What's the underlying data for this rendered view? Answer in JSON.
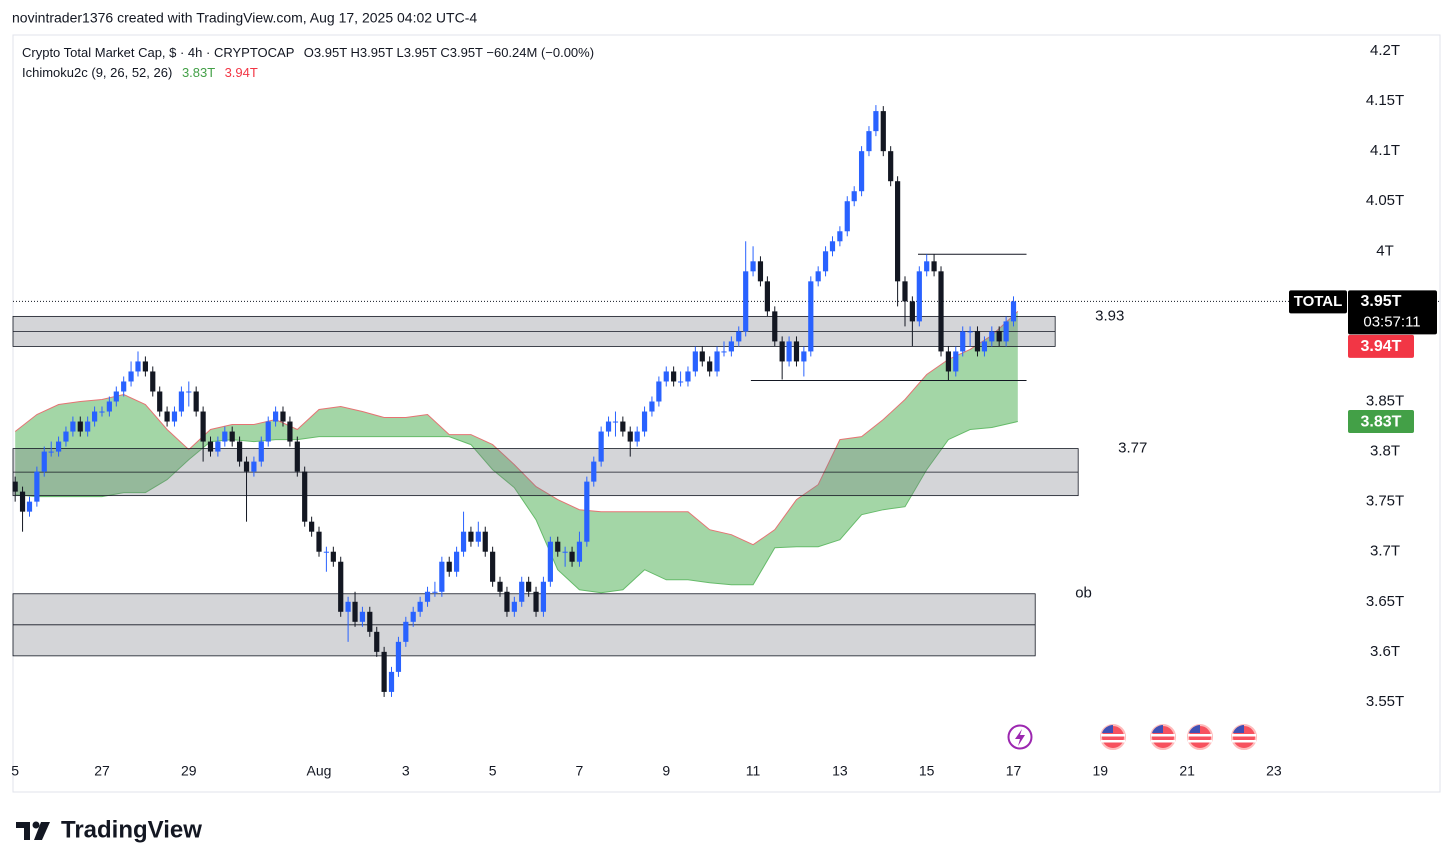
{
  "header": {
    "credit": "novintrader1376 created with TradingView.com, Aug 17, 2025 04:02 UTC-4"
  },
  "footer": {
    "brand": "TradingView"
  },
  "chart_data": {
    "type": "candlestick",
    "title": "Crypto Total Market Cap, $ · 4h · CRYPTOCAP",
    "ohlc_legend": "O3.95T H3.95T L3.95T C3.95T −60.24M (−0.00%)",
    "indicator": {
      "name": "Ichimoku2c (9, 26, 52, 26)",
      "values": [
        {
          "value": 3.83,
          "label": "3.83T",
          "color": "#43a047"
        },
        {
          "value": 3.94,
          "label": "3.94T",
          "color": "#f23645"
        }
      ]
    },
    "symbol_label": "TOTAL",
    "last_price": {
      "value": 3.95,
      "label": "3.95T"
    },
    "countdown": "03:57:11",
    "up_color": "#2962ff",
    "down_color": "#131722",
    "x": [
      0,
      0.17,
      0.33,
      0.5,
      0.67,
      0.83,
      1,
      1.17,
      1.33,
      1.5,
      1.67,
      1.83,
      2,
      2.17,
      2.33,
      2.5,
      2.67,
      2.83,
      3,
      3.17,
      3.33,
      3.5,
      3.67,
      3.83,
      4,
      4.17,
      4.33,
      4.5,
      4.67,
      4.83,
      5,
      5.17,
      5.33,
      5.5,
      5.67,
      5.83,
      6,
      6.17,
      6.33,
      6.5,
      6.67,
      6.83,
      7,
      7.17,
      7.33,
      7.5,
      7.67,
      7.83,
      8,
      8.17,
      8.33,
      8.5,
      8.67,
      8.83,
      9,
      9.17,
      9.33,
      9.5,
      9.67,
      9.83,
      10,
      10.17,
      10.33,
      10.5,
      10.67,
      10.83,
      11,
      11.17,
      11.33,
      11.5,
      11.67,
      11.83,
      12,
      12.17,
      12.33,
      12.5,
      12.67,
      12.83,
      13,
      13.17,
      13.33,
      13.5,
      13.67,
      13.83,
      14,
      14.17,
      14.33,
      14.5,
      14.67,
      14.83,
      15,
      15.17,
      15.33,
      15.5,
      15.67,
      15.83,
      16,
      16.17,
      16.33,
      16.5,
      16.67,
      16.83,
      17,
      17.17,
      17.33,
      17.5,
      17.67,
      17.83,
      18,
      18.17,
      18.33,
      18.5,
      18.67,
      18.83,
      19,
      19.17,
      19.33,
      19.5,
      19.67,
      19.83,
      20,
      20.17,
      20.33,
      20.5,
      20.67,
      20.83,
      21,
      21.17,
      21.33,
      21.5,
      21.67,
      21.83,
      22,
      22.17,
      22.33,
      22.5,
      22.67,
      22.83,
      23
    ],
    "candles": [
      [
        3.77,
        3.775,
        3.75,
        3.76
      ],
      [
        3.76,
        3.765,
        3.72,
        3.74
      ],
      [
        3.74,
        3.755,
        3.735,
        3.75
      ],
      [
        3.75,
        3.785,
        3.745,
        3.78
      ],
      [
        3.78,
        3.805,
        3.775,
        3.8
      ],
      [
        3.8,
        3.81,
        3.795,
        3.8
      ],
      [
        3.8,
        3.815,
        3.795,
        3.81
      ],
      [
        3.81,
        3.825,
        3.805,
        3.82
      ],
      [
        3.82,
        3.835,
        3.815,
        3.83
      ],
      [
        3.83,
        3.835,
        3.815,
        3.82
      ],
      [
        3.82,
        3.835,
        3.815,
        3.83
      ],
      [
        3.83,
        3.845,
        3.825,
        3.84
      ],
      [
        3.84,
        3.845,
        3.835,
        3.84
      ],
      [
        3.84,
        3.855,
        3.835,
        3.85
      ],
      [
        3.85,
        3.865,
        3.845,
        3.86
      ],
      [
        3.86,
        3.875,
        3.855,
        3.87
      ],
      [
        3.87,
        3.89,
        3.865,
        3.88
      ],
      [
        3.88,
        3.9,
        3.875,
        3.89
      ],
      [
        3.89,
        3.895,
        3.875,
        3.88
      ],
      [
        3.88,
        3.885,
        3.855,
        3.86
      ],
      [
        3.86,
        3.865,
        3.835,
        3.84
      ],
      [
        3.84,
        3.845,
        3.825,
        3.83
      ],
      [
        3.83,
        3.845,
        3.825,
        3.84
      ],
      [
        3.84,
        3.865,
        3.835,
        3.86
      ],
      [
        3.86,
        3.87,
        3.845,
        3.86
      ],
      [
        3.86,
        3.865,
        3.835,
        3.84
      ],
      [
        3.84,
        3.845,
        3.79,
        3.81
      ],
      [
        3.81,
        3.815,
        3.795,
        3.8
      ],
      [
        3.8,
        3.815,
        3.795,
        3.81
      ],
      [
        3.81,
        3.825,
        3.805,
        3.82
      ],
      [
        3.82,
        3.825,
        3.805,
        3.81
      ],
      [
        3.81,
        3.815,
        3.785,
        3.79
      ],
      [
        3.79,
        3.795,
        3.73,
        3.78
      ],
      [
        3.78,
        3.795,
        3.775,
        3.79
      ],
      [
        3.79,
        3.815,
        3.785,
        3.81
      ],
      [
        3.81,
        3.835,
        3.805,
        3.83
      ],
      [
        3.83,
        3.845,
        3.825,
        3.84
      ],
      [
        3.84,
        3.845,
        3.825,
        3.83
      ],
      [
        3.83,
        3.835,
        3.805,
        3.81
      ],
      [
        3.81,
        3.815,
        3.775,
        3.78
      ],
      [
        3.78,
        3.785,
        3.725,
        3.73
      ],
      [
        3.73,
        3.735,
        3.715,
        3.72
      ],
      [
        3.72,
        3.725,
        3.695,
        3.7
      ],
      [
        3.7,
        3.705,
        3.68,
        3.7
      ],
      [
        3.7,
        3.705,
        3.685,
        3.69
      ],
      [
        3.69,
        3.695,
        3.635,
        3.64
      ],
      [
        3.64,
        3.655,
        3.61,
        3.65
      ],
      [
        3.65,
        3.66,
        3.625,
        3.63
      ],
      [
        3.63,
        3.645,
        3.625,
        3.64
      ],
      [
        3.64,
        3.645,
        3.615,
        3.62
      ],
      [
        3.62,
        3.625,
        3.595,
        3.6
      ],
      [
        3.6,
        3.605,
        3.555,
        3.56
      ],
      [
        3.56,
        3.585,
        3.555,
        3.58
      ],
      [
        3.58,
        3.615,
        3.575,
        3.61
      ],
      [
        3.61,
        3.635,
        3.605,
        3.63
      ],
      [
        3.63,
        3.645,
        3.625,
        3.64
      ],
      [
        3.64,
        3.655,
        3.635,
        3.65
      ],
      [
        3.65,
        3.665,
        3.645,
        3.66
      ],
      [
        3.66,
        3.67,
        3.655,
        3.66
      ],
      [
        3.66,
        3.695,
        3.655,
        3.69
      ],
      [
        3.69,
        3.695,
        3.675,
        3.68
      ],
      [
        3.68,
        3.705,
        3.675,
        3.7
      ],
      [
        3.7,
        3.74,
        3.695,
        3.72
      ],
      [
        3.72,
        3.725,
        3.705,
        3.71
      ],
      [
        3.71,
        3.73,
        3.705,
        3.72
      ],
      [
        3.72,
        3.725,
        3.695,
        3.7
      ],
      [
        3.7,
        3.705,
        3.665,
        3.67
      ],
      [
        3.67,
        3.675,
        3.655,
        3.66
      ],
      [
        3.66,
        3.665,
        3.635,
        3.64
      ],
      [
        3.64,
        3.655,
        3.635,
        3.65
      ],
      [
        3.65,
        3.675,
        3.645,
        3.67
      ],
      [
        3.67,
        3.675,
        3.655,
        3.66
      ],
      [
        3.66,
        3.665,
        3.635,
        3.64
      ],
      [
        3.64,
        3.675,
        3.635,
        3.67
      ],
      [
        3.67,
        3.715,
        3.665,
        3.71
      ],
      [
        3.71,
        3.715,
        3.695,
        3.7
      ],
      [
        3.7,
        3.705,
        3.685,
        3.7
      ],
      [
        3.7,
        3.705,
        3.685,
        3.69
      ],
      [
        3.69,
        3.72,
        3.685,
        3.71
      ],
      [
        3.71,
        3.775,
        3.705,
        3.77
      ],
      [
        3.77,
        3.795,
        3.765,
        3.79
      ],
      [
        3.79,
        3.825,
        3.785,
        3.82
      ],
      [
        3.82,
        3.835,
        3.815,
        3.83
      ],
      [
        3.83,
        3.84,
        3.815,
        3.83
      ],
      [
        3.83,
        3.835,
        3.815,
        3.82
      ],
      [
        3.82,
        3.825,
        3.795,
        3.81
      ],
      [
        3.81,
        3.825,
        3.805,
        3.82
      ],
      [
        3.82,
        3.845,
        3.815,
        3.84
      ],
      [
        3.84,
        3.855,
        3.835,
        3.85
      ],
      [
        3.85,
        3.875,
        3.845,
        3.87
      ],
      [
        3.87,
        3.885,
        3.865,
        3.88
      ],
      [
        3.88,
        3.885,
        3.865,
        3.87
      ],
      [
        3.87,
        3.88,
        3.865,
        3.87
      ],
      [
        3.87,
        3.885,
        3.865,
        3.88
      ],
      [
        3.88,
        3.905,
        3.875,
        3.9
      ],
      [
        3.9,
        3.905,
        3.885,
        3.89
      ],
      [
        3.89,
        3.895,
        3.875,
        3.88
      ],
      [
        3.88,
        3.905,
        3.875,
        3.9
      ],
      [
        3.9,
        3.91,
        3.895,
        3.9
      ],
      [
        3.9,
        3.915,
        3.895,
        3.91
      ],
      [
        3.91,
        3.925,
        3.905,
        3.92
      ],
      [
        3.92,
        4.01,
        3.915,
        3.98
      ],
      [
        3.98,
        4.005,
        3.975,
        3.99
      ],
      [
        3.99,
        3.995,
        3.965,
        3.97
      ],
      [
        3.97,
        3.975,
        3.935,
        3.94
      ],
      [
        3.94,
        3.945,
        3.905,
        3.91
      ],
      [
        3.91,
        3.915,
        3.872,
        3.89
      ],
      [
        3.89,
        3.915,
        3.885,
        3.91
      ],
      [
        3.91,
        3.915,
        3.885,
        3.89
      ],
      [
        3.89,
        3.905,
        3.875,
        3.9
      ],
      [
        3.9,
        3.975,
        3.895,
        3.97
      ],
      [
        3.97,
        3.985,
        3.965,
        3.98
      ],
      [
        3.98,
        4.005,
        3.975,
        4.0
      ],
      [
        4.0,
        4.015,
        3.995,
        4.01
      ],
      [
        4.01,
        4.025,
        4.005,
        4.02
      ],
      [
        4.02,
        4.055,
        4.015,
        4.05
      ],
      [
        4.05,
        4.065,
        4.045,
        4.06
      ],
      [
        4.06,
        4.105,
        4.055,
        4.1
      ],
      [
        4.1,
        4.125,
        4.095,
        4.12
      ],
      [
        4.12,
        4.146,
        4.115,
        4.14
      ],
      [
        4.14,
        4.145,
        4.095,
        4.1
      ],
      [
        4.1,
        4.105,
        4.065,
        4.07
      ],
      [
        4.07,
        4.075,
        3.945,
        3.97
      ],
      [
        3.97,
        3.975,
        3.925,
        3.95
      ],
      [
        3.95,
        3.955,
        3.905,
        3.93
      ],
      [
        3.93,
        3.985,
        3.925,
        3.98
      ],
      [
        3.98,
        3.997,
        3.975,
        3.99
      ],
      [
        3.99,
        3.997,
        3.975,
        3.98
      ],
      [
        3.98,
        3.985,
        3.895,
        3.9
      ],
      [
        3.9,
        3.905,
        3.871,
        3.88
      ],
      [
        3.88,
        3.905,
        3.875,
        3.9
      ],
      [
        3.9,
        3.925,
        3.895,
        3.92
      ],
      [
        3.92,
        3.925,
        3.905,
        3.92
      ],
      [
        3.92,
        3.925,
        3.895,
        3.9
      ],
      [
        3.9,
        3.915,
        3.895,
        3.91
      ],
      [
        3.91,
        3.925,
        3.905,
        3.92
      ],
      [
        3.92,
        3.925,
        3.905,
        3.91
      ],
      [
        3.91,
        3.935,
        3.905,
        3.93
      ],
      [
        3.93,
        3.955,
        3.925,
        3.95
      ]
    ],
    "cloud": {
      "fill": "#66bb6a",
      "upper_color": "#e57373",
      "lower_color": "#66bb6a",
      "x": [
        0,
        0.5,
        1,
        1.5,
        2,
        2.5,
        3,
        3.5,
        4,
        4.5,
        5,
        5.5,
        6,
        6.5,
        7,
        7.5,
        8,
        8.5,
        9,
        9.5,
        10,
        10.5,
        11,
        11.5,
        12,
        12.5,
        13,
        13.5,
        14,
        14.5,
        15,
        15.5,
        16,
        16.5,
        17,
        17.5,
        18,
        18.5,
        19,
        19.5,
        20,
        20.5,
        21,
        21.5,
        22,
        22.5,
        23.1
      ],
      "upper": [
        3.82,
        3.837,
        3.847,
        3.85,
        3.852,
        3.857,
        3.847,
        3.822,
        3.802,
        3.822,
        3.827,
        3.827,
        3.832,
        3.822,
        3.842,
        3.845,
        3.84,
        3.834,
        3.834,
        3.837,
        3.817,
        3.817,
        3.807,
        3.787,
        3.765,
        3.752,
        3.742,
        3.74,
        3.74,
        3.74,
        3.74,
        3.74,
        3.722,
        3.717,
        3.707,
        3.722,
        3.752,
        3.767,
        3.812,
        3.815,
        3.832,
        3.852,
        3.877,
        3.892,
        3.902,
        3.916,
        3.94
      ],
      "lower": [
        3.757,
        3.755,
        3.755,
        3.755,
        3.755,
        3.759,
        3.759,
        3.772,
        3.792,
        3.81,
        3.812,
        3.81,
        3.812,
        3.812,
        3.815,
        3.815,
        3.815,
        3.815,
        3.815,
        3.815,
        3.815,
        3.807,
        3.782,
        3.764,
        3.732,
        3.682,
        3.662,
        3.659,
        3.662,
        3.682,
        3.672,
        3.672,
        3.669,
        3.667,
        3.667,
        3.704,
        3.705,
        3.705,
        3.712,
        3.737,
        3.742,
        3.745,
        3.782,
        3.812,
        3.822,
        3.824,
        3.83
      ]
    },
    "zones": [
      {
        "top": 3.935,
        "bottom": 3.905,
        "end": 23.96,
        "label": "3.93"
      },
      {
        "top": 3.803,
        "bottom": 3.756,
        "end": 24.49,
        "label": "3.77"
      },
      {
        "top": 3.658,
        "bottom": 3.596,
        "end": 23.5,
        "label": "ob"
      }
    ],
    "levels": [
      {
        "value": 3.997,
        "x": [
          20.8,
          23.3
        ]
      },
      {
        "value": 3.871,
        "x": [
          16.95,
          23.3
        ]
      }
    ],
    "xlim": [
      -0.05,
      29.37
    ],
    "ylim": [
      3.492,
      4.216
    ],
    "xticks": [
      {
        "value": 0,
        "label": "5"
      },
      {
        "value": 2,
        "label": "27"
      },
      {
        "value": 4,
        "label": "29"
      },
      {
        "value": 7,
        "label": "Aug"
      },
      {
        "value": 9,
        "label": "3"
      },
      {
        "value": 11,
        "label": "5"
      },
      {
        "value": 13,
        "label": "7"
      },
      {
        "value": 15,
        "label": "9"
      },
      {
        "value": 17,
        "label": "11"
      },
      {
        "value": 19,
        "label": "13"
      },
      {
        "value": 21,
        "label": "15"
      },
      {
        "value": 23,
        "label": "17"
      },
      {
        "value": 25,
        "label": "19"
      },
      {
        "value": 27,
        "label": "21"
      },
      {
        "value": 29,
        "label": "23"
      }
    ],
    "yticks": [
      {
        "value": 4.2,
        "label": "4.2T"
      },
      {
        "value": 4.15,
        "label": "4.15T"
      },
      {
        "value": 4.1,
        "label": "4.1T"
      },
      {
        "value": 4.05,
        "label": "4.05T"
      },
      {
        "value": 4,
        "label": "4T"
      },
      {
        "value": 3.85,
        "label": "3.85T"
      },
      {
        "value": 3.8,
        "label": "3.8T"
      },
      {
        "value": 3.75,
        "label": "3.75T"
      },
      {
        "value": 3.7,
        "label": "3.7T"
      },
      {
        "value": 3.65,
        "label": "3.65T"
      },
      {
        "value": 3.6,
        "label": "3.6T"
      },
      {
        "value": 3.55,
        "label": "3.55T"
      }
    ]
  }
}
